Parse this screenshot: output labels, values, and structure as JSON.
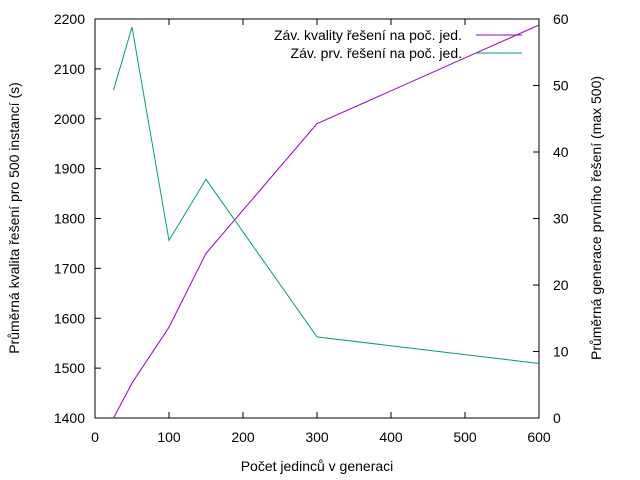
{
  "chart_data": {
    "type": "line",
    "title": "",
    "xlabel": "Počet jedinců v generaci",
    "ylabel": "Průměrná kvalita řešení pro 500 instancí (s)",
    "y2label": "Průměrná generace prvního řešení (max 500)",
    "xlim": [
      0,
      600
    ],
    "ylim": [
      1400,
      2200
    ],
    "y2lim": [
      0,
      60
    ],
    "xticks": [
      0,
      100,
      200,
      300,
      400,
      500,
      600
    ],
    "yticks": [
      1400,
      1500,
      1600,
      1700,
      1800,
      1900,
      2000,
      2100,
      2200
    ],
    "y2ticks": [
      0,
      10,
      20,
      30,
      40,
      50,
      60
    ],
    "grid": false,
    "legend": "top-right",
    "series": [
      {
        "name": "Záv. kvality řešení na poč. jed.",
        "axis": "left",
        "color": "#9400d3",
        "x": [
          25,
          50,
          100,
          150,
          300,
          600
        ],
        "y": [
          1400,
          1470,
          1582,
          1730,
          1990,
          2188
        ]
      },
      {
        "name": "Záv. prv. řešení na poč. jed.",
        "axis": "right",
        "color": "#009e73",
        "x": [
          25,
          50,
          100,
          150,
          300,
          600
        ],
        "y": [
          49.3,
          58.8,
          26.7,
          35.9,
          12.2,
          8.2
        ]
      }
    ]
  }
}
